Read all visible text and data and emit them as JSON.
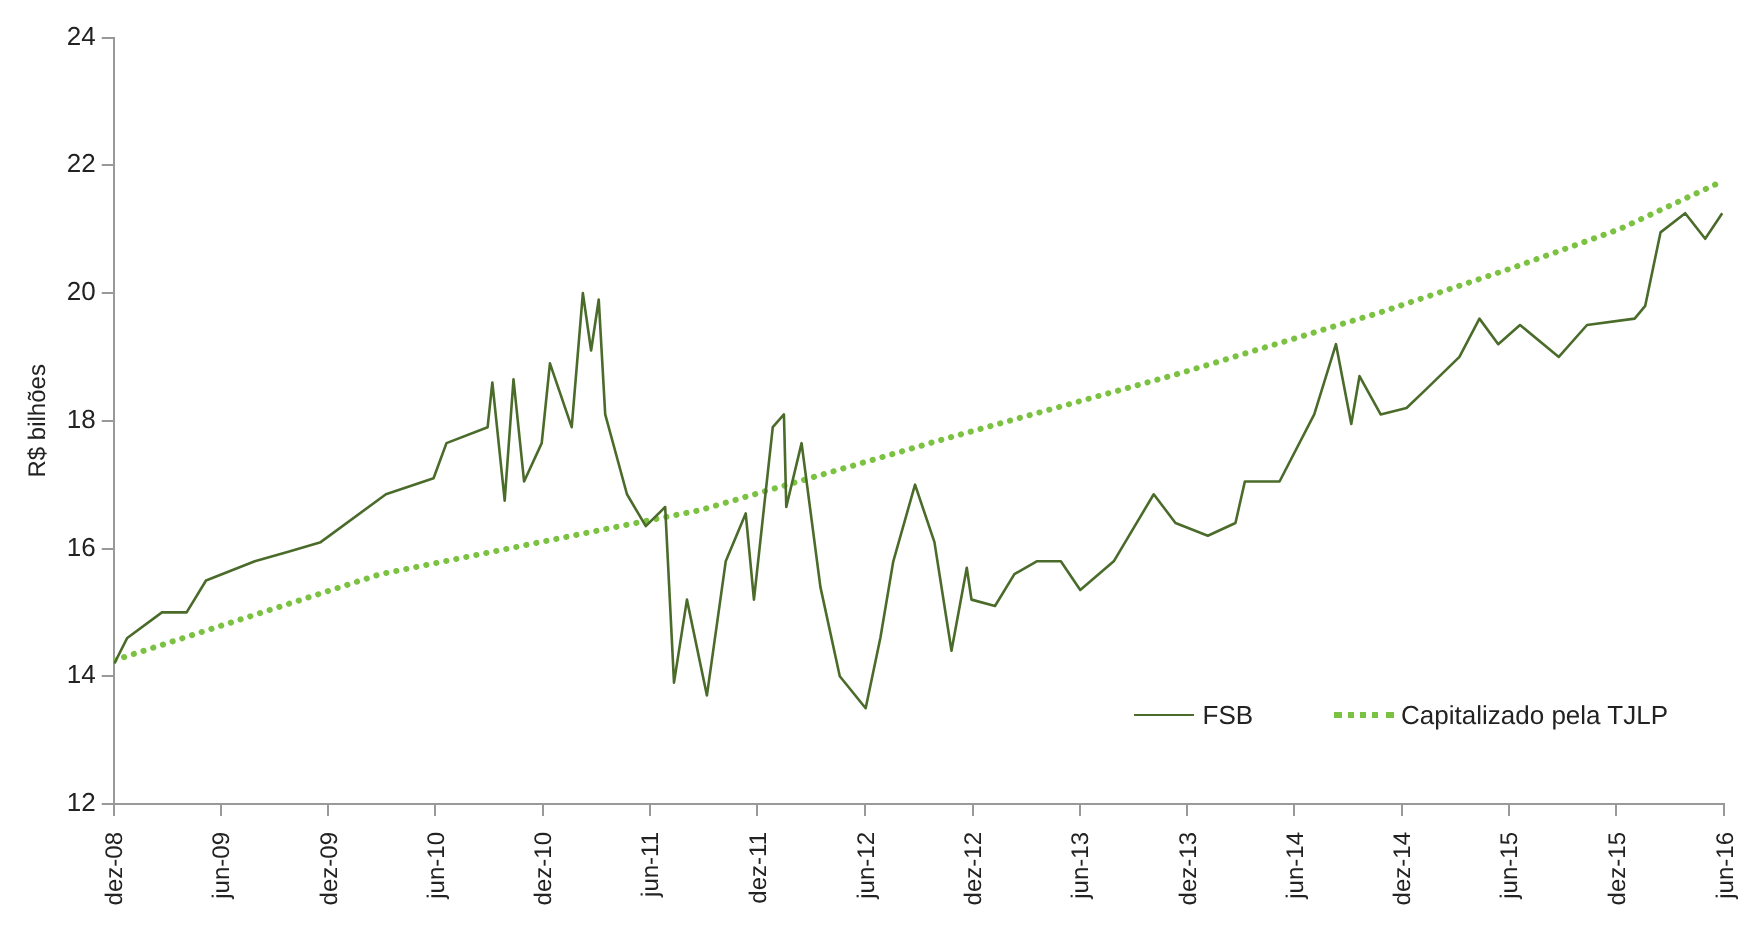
{
  "chart_data": {
    "type": "line",
    "ylabel": "R$ bilhões",
    "xlim": [
      "2008-12-01",
      "2016-06-01"
    ],
    "ylim": [
      12,
      24
    ],
    "yticks": [
      12,
      14,
      16,
      18,
      20,
      22,
      24
    ],
    "xticks": [
      {
        "value": "2008-12-01",
        "label": "dez-08"
      },
      {
        "value": "2009-06-01",
        "label": "jun-09"
      },
      {
        "value": "2009-12-01",
        "label": "dez-09"
      },
      {
        "value": "2010-06-01",
        "label": "jun-10"
      },
      {
        "value": "2010-12-01",
        "label": "dez-10"
      },
      {
        "value": "2011-06-01",
        "label": "jun-11"
      },
      {
        "value": "2011-12-01",
        "label": "dez-11"
      },
      {
        "value": "2012-06-01",
        "label": "jun-12"
      },
      {
        "value": "2012-12-01",
        "label": "dez-12"
      },
      {
        "value": "2013-06-01",
        "label": "jun-13"
      },
      {
        "value": "2013-12-01",
        "label": "dez-13"
      },
      {
        "value": "2014-06-01",
        "label": "jun-14"
      },
      {
        "value": "2014-12-01",
        "label": "dez-14"
      },
      {
        "value": "2015-06-01",
        "label": "jun-15"
      },
      {
        "value": "2015-12-01",
        "label": "dez-15"
      },
      {
        "value": "2016-06-01",
        "label": "jun-16"
      }
    ],
    "grid": false,
    "legend": "bottom right",
    "marker": "none",
    "series": [
      {
        "name": "FSB",
        "color": "#4b6b2b",
        "line_style": "solid",
        "x": [
          "2008-12-02",
          "2008-12-24",
          "2009-02-21",
          "2009-04-04",
          "2009-05-07",
          "2009-07-29",
          "2009-09-24",
          "2009-11-18",
          "2010-03-09",
          "2010-05-29",
          "2010-06-20",
          "2010-08-29",
          "2010-09-06",
          "2010-09-27",
          "2010-10-12",
          "2010-10-30",
          "2010-11-29",
          "2010-12-13",
          "2011-01-19",
          "2011-02-07",
          "2011-02-21",
          "2011-03-06",
          "2011-03-17",
          "2011-04-23",
          "2011-05-25",
          "2011-06-27",
          "2011-07-12",
          "2011-08-03",
          "2011-09-06",
          "2011-10-08",
          "2011-11-11",
          "2011-11-25",
          "2011-12-27",
          "2012-01-15",
          "2012-01-19",
          "2012-02-14",
          "2012-03-17",
          "2012-04-19",
          "2012-06-02",
          "2012-06-27",
          "2012-07-19",
          "2012-08-25",
          "2012-09-27",
          "2012-10-26",
          "2012-11-21",
          "2012-11-29",
          "2013-01-08",
          "2013-02-10",
          "2013-03-20",
          "2013-04-30",
          "2013-06-02",
          "2013-07-29",
          "2013-10-05",
          "2013-11-11",
          "2014-01-05",
          "2014-02-21",
          "2014-03-09",
          "2014-05-07",
          "2014-07-05",
          "2014-08-11",
          "2014-09-06",
          "2014-09-20",
          "2014-10-26",
          "2014-12-09",
          "2015-01-12",
          "2015-03-09",
          "2015-04-12",
          "2015-05-14",
          "2015-06-20",
          "2015-08-25",
          "2015-10-12",
          "2016-01-01",
          "2016-01-19",
          "2016-02-14",
          "2016-03-27",
          "2016-04-30",
          "2016-05-29"
        ],
        "values": [
          14.2,
          14.6,
          15.0,
          15.0,
          15.5,
          15.8,
          15.95,
          16.1,
          16.85,
          17.1,
          17.65,
          17.9,
          18.6,
          16.75,
          18.65,
          17.05,
          17.65,
          18.9,
          17.9,
          20.0,
          19.1,
          19.9,
          18.1,
          16.85,
          16.35,
          16.65,
          13.9,
          15.2,
          13.7,
          15.8,
          16.55,
          15.2,
          17.9,
          18.1,
          16.65,
          17.65,
          15.4,
          14.0,
          13.5,
          14.6,
          15.8,
          17.0,
          16.1,
          14.4,
          15.7,
          15.2,
          15.1,
          15.6,
          15.8,
          15.8,
          15.35,
          15.8,
          16.85,
          16.4,
          16.2,
          16.4,
          17.05,
          17.05,
          18.1,
          19.2,
          17.95,
          18.7,
          18.1,
          18.2,
          18.5,
          19.0,
          19.6,
          19.2,
          19.5,
          19.0,
          19.5,
          19.6,
          19.8,
          20.95,
          21.25,
          20.85,
          21.25
        ]
      },
      {
        "name": "Capitalizado pela TJLP",
        "color": "#7cc242",
        "line_style": "dotted",
        "x": [
          "2008-12-02",
          "2010-02-28",
          "2011-08-25",
          "2012-10-08",
          "2013-11-21",
          "2014-10-26",
          "2015-06-09",
          "2015-12-06",
          "2016-05-29"
        ],
        "values": [
          14.25,
          15.6,
          16.6,
          17.7,
          18.75,
          19.7,
          20.4,
          21.0,
          21.75
        ]
      }
    ]
  }
}
